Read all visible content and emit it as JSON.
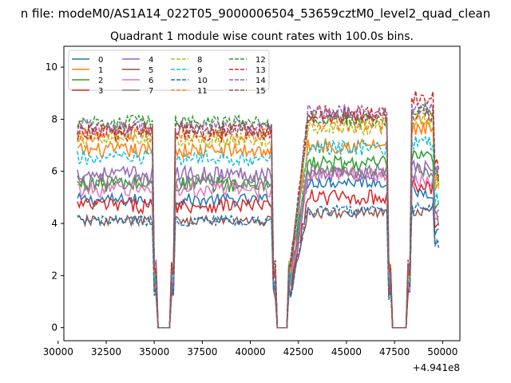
{
  "chart_data": {
    "type": "line",
    "suptitle": "n file: modeM0/AS1A14_022T05_9000006504_53659cztM0_level2_quad_clean",
    "title": "Quadrant 1 module wise count rates with 100.0s bins.",
    "xlabel": "",
    "ylabel": "",
    "x_offset_label": "+4.941e8",
    "xlim": [
      30300,
      50900
    ],
    "ylim": [
      -0.5,
      10.8
    ],
    "xticks": [
      30000,
      32500,
      35000,
      37500,
      40000,
      42500,
      45000,
      47500,
      50000
    ],
    "xtick_labels": [
      "30000",
      "32500",
      "35000",
      "37500",
      "40000",
      "42500",
      "45000",
      "47500",
      "50000"
    ],
    "yticks": [
      0,
      2,
      4,
      6,
      8,
      10
    ],
    "ytick_labels": [
      "0",
      "2",
      "4",
      "6",
      "8",
      "10"
    ],
    "grid": false,
    "legend_placement": "top-left",
    "x_start": 31000,
    "x_step": 100,
    "gaps": [
      [
        35000,
        36000
      ],
      [
        41200,
        42100
      ],
      [
        47200,
        48300
      ]
    ],
    "series": [
      {
        "name": "0",
        "color": "#1f77b4",
        "dash": false,
        "levels": [
          4.9,
          5.6,
          5.2
        ],
        "noise": 0.25
      },
      {
        "name": "1",
        "color": "#ff7f0e",
        "dash": false,
        "levels": [
          6.8,
          7.0,
          7.6
        ],
        "noise": 0.3
      },
      {
        "name": "2",
        "color": "#2ca02c",
        "dash": false,
        "levels": [
          5.5,
          6.3,
          6.5
        ],
        "noise": 0.3
      },
      {
        "name": "3",
        "color": "#d62728",
        "dash": false,
        "levels": [
          4.7,
          5.0,
          5.4
        ],
        "noise": 0.3
      },
      {
        "name": "4",
        "color": "#9467bd",
        "dash": false,
        "levels": [
          5.9,
          5.9,
          6.1
        ],
        "noise": 0.3
      },
      {
        "name": "5",
        "color": "#8c564b",
        "dash": false,
        "levels": [
          4.1,
          4.4,
          4.5
        ],
        "noise": 0.2
      },
      {
        "name": "6",
        "color": "#e377c2",
        "dash": false,
        "levels": [
          5.3,
          5.9,
          5.7
        ],
        "noise": 0.3
      },
      {
        "name": "7",
        "color": "#7f7f7f",
        "dash": false,
        "levels": [
          5.6,
          6.0,
          6.0
        ],
        "noise": 0.3
      },
      {
        "name": "8",
        "color": "#bcbd22",
        "dash": true,
        "levels": [
          7.2,
          7.7,
          8.0
        ],
        "noise": 0.3
      },
      {
        "name": "9",
        "color": "#17becf",
        "dash": true,
        "levels": [
          6.5,
          6.9,
          7.1
        ],
        "noise": 0.3
      },
      {
        "name": "10",
        "color": "#1f77b4",
        "dash": true,
        "levels": [
          4.1,
          4.5,
          4.6
        ],
        "noise": 0.2
      },
      {
        "name": "11",
        "color": "#ff7f0e",
        "dash": true,
        "levels": [
          7.4,
          7.8,
          8.1
        ],
        "noise": 0.3
      },
      {
        "name": "12",
        "color": "#2ca02c",
        "dash": true,
        "levels": [
          7.9,
          8.0,
          8.4
        ],
        "noise": 0.25
      },
      {
        "name": "13",
        "color": "#d62728",
        "dash": true,
        "levels": [
          7.5,
          8.2,
          8.9
        ],
        "noise": 0.35
      },
      {
        "name": "14",
        "color": "#9467bd",
        "dash": true,
        "levels": [
          7.7,
          8.3,
          8.5
        ],
        "noise": 0.3
      },
      {
        "name": "15",
        "color": "#8c564b",
        "dash": true,
        "levels": [
          7.6,
          8.1,
          8.2
        ],
        "noise": 0.3
      }
    ]
  }
}
